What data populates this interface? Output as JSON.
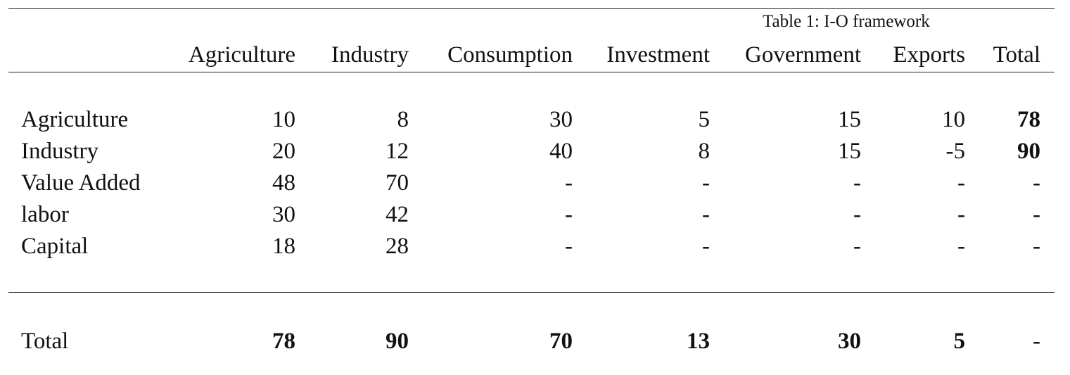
{
  "table": {
    "caption": "Table 1: I-O framework",
    "column_headers": [
      "Agriculture",
      "Industry",
      "Consumption",
      "Investment",
      "Government",
      "Exports",
      "Total"
    ],
    "rows": [
      {
        "label": "Agriculture",
        "cells": [
          "10",
          "8",
          "30",
          "5",
          "15",
          "10",
          "78"
        ]
      },
      {
        "label": "Industry",
        "cells": [
          "20",
          "12",
          "40",
          "8",
          "15",
          "-5",
          "90"
        ]
      },
      {
        "label": "Value Added",
        "cells": [
          "48",
          "70",
          "-",
          "-",
          "-",
          "-",
          "-"
        ]
      },
      {
        "label": "labor",
        "cells": [
          "30",
          "42",
          "-",
          "-",
          "-",
          "-",
          "-"
        ]
      },
      {
        "label": "Capital",
        "cells": [
          "18",
          "28",
          "-",
          "-",
          "-",
          "-",
          "-"
        ]
      }
    ],
    "total_row": {
      "label": "Total",
      "cells": [
        "78",
        "90",
        "70",
        "13",
        "30",
        "5",
        "-"
      ]
    }
  }
}
